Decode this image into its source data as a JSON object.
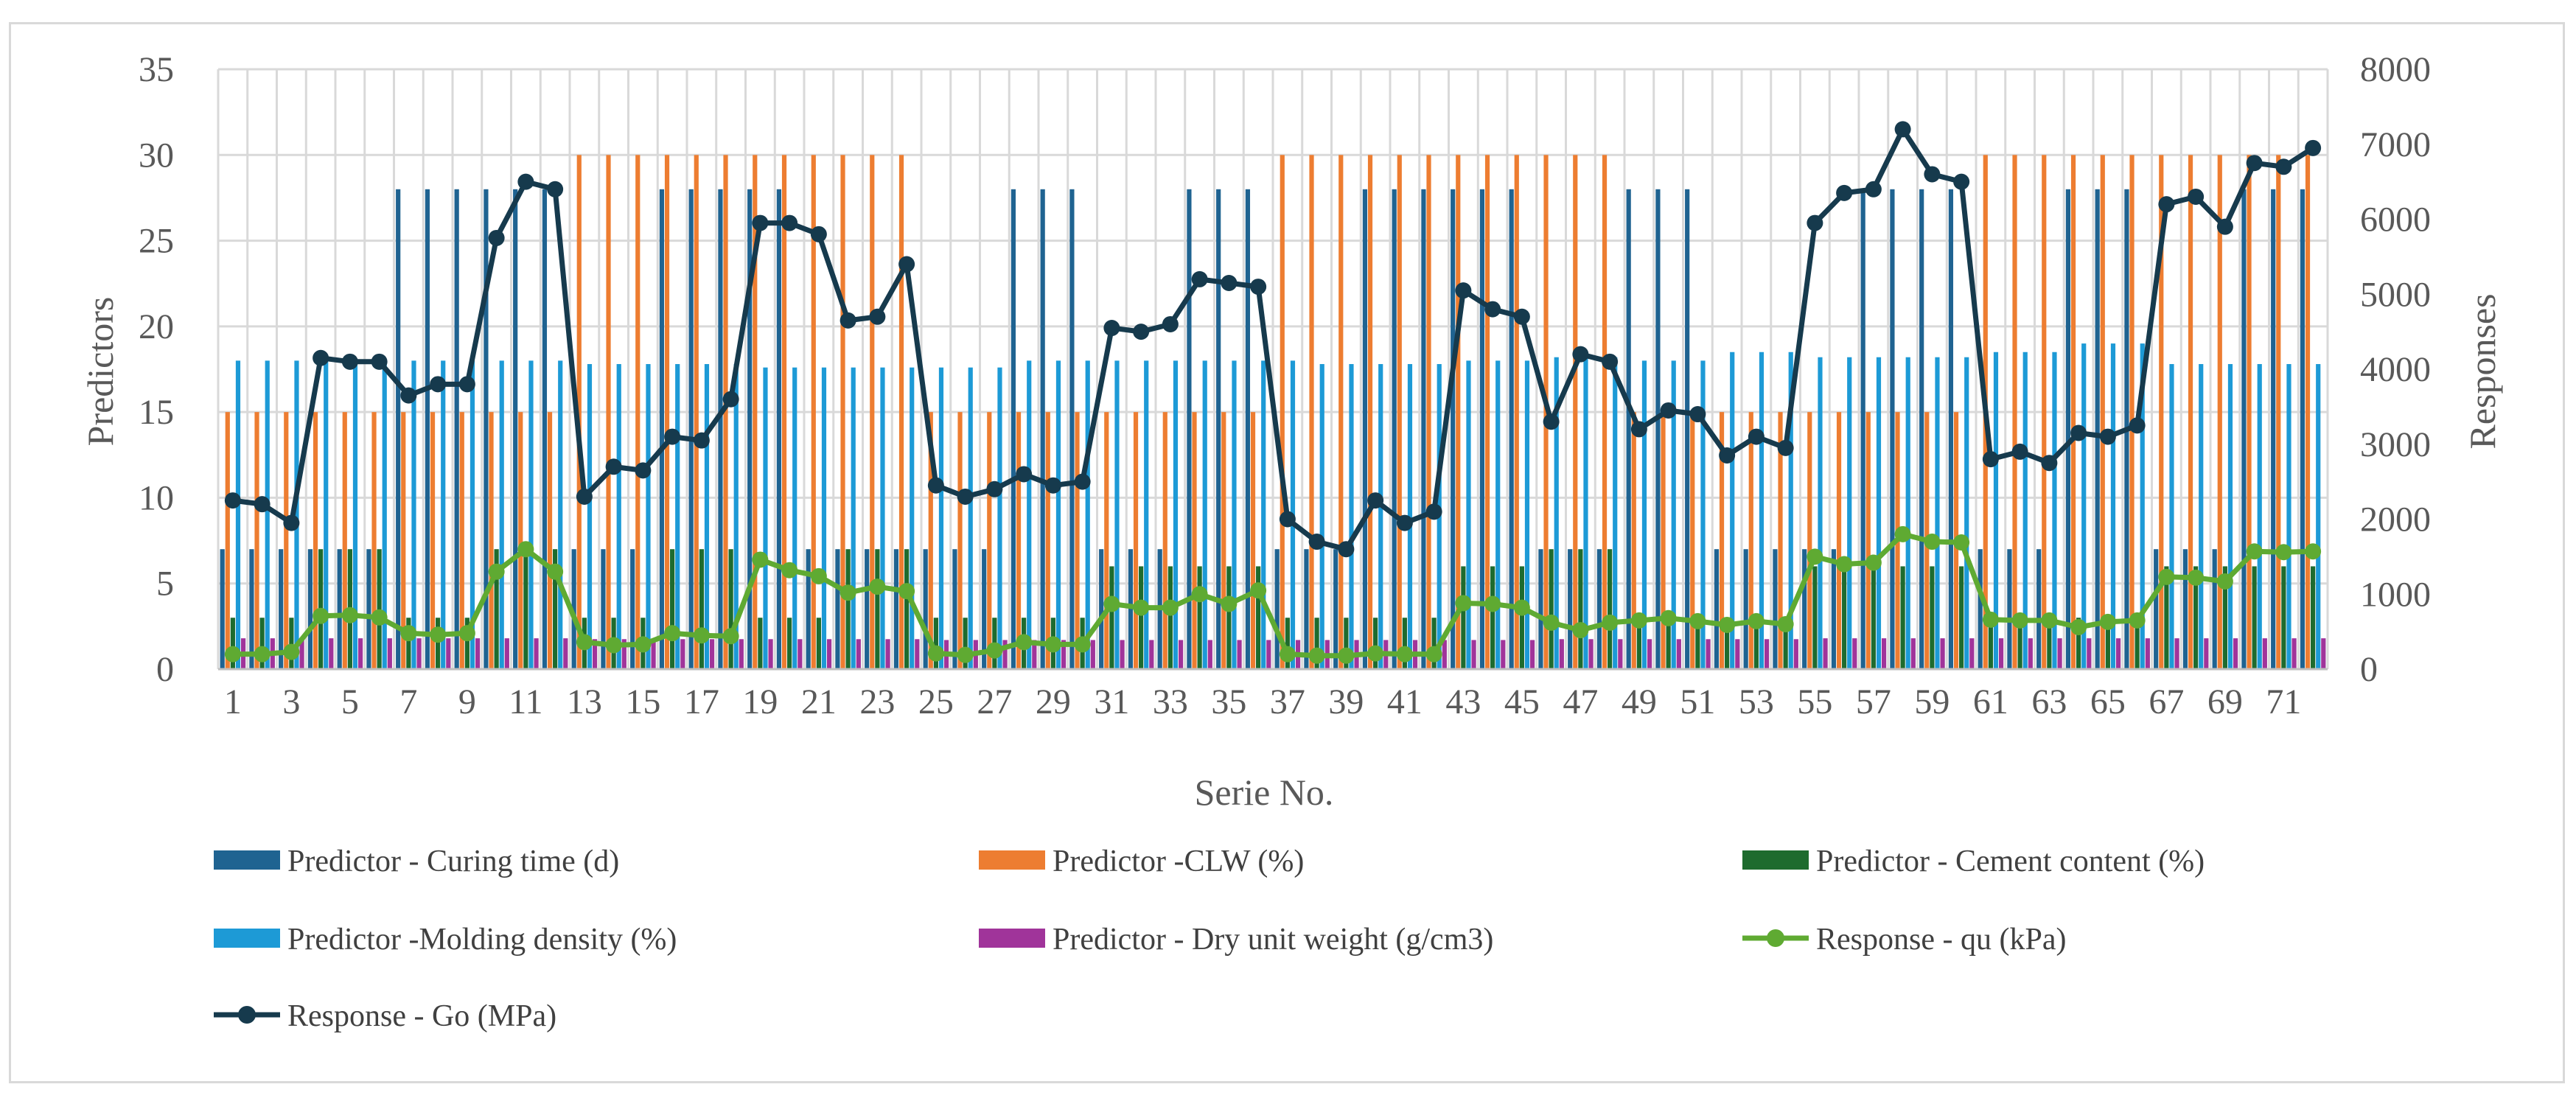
{
  "chart_data": {
    "type": "bar+line (dual axis)",
    "title": "",
    "xlabel": "Serie No.",
    "ylabel_left": "Predictors",
    "ylabel_right": "Responses",
    "ylim_left": [
      0,
      35
    ],
    "ylim_right": [
      0,
      8000
    ],
    "yticks_left": [
      "0",
      "5",
      "10",
      "15",
      "20",
      "25",
      "30",
      "35"
    ],
    "yticks_right": [
      "0",
      "1000",
      "2000",
      "3000",
      "4000",
      "5000",
      "6000",
      "7000",
      "8000"
    ],
    "xtick_labels": [
      "1",
      "3",
      "5",
      "7",
      "9",
      "11",
      "13",
      "15",
      "17",
      "19",
      "21",
      "23",
      "25",
      "27",
      "29",
      "31",
      "33",
      "35",
      "37",
      "39",
      "41",
      "43",
      "45",
      "47",
      "49",
      "51",
      "53",
      "55",
      "57",
      "59",
      "61",
      "63",
      "65",
      "67",
      "69",
      "71"
    ],
    "x": [
      1,
      2,
      3,
      4,
      5,
      6,
      7,
      8,
      9,
      10,
      11,
      12,
      13,
      14,
      15,
      16,
      17,
      18,
      19,
      20,
      21,
      22,
      23,
      24,
      25,
      26,
      27,
      28,
      29,
      30,
      31,
      32,
      33,
      34,
      35,
      36,
      37,
      38,
      39,
      40,
      41,
      42,
      43,
      44,
      45,
      46,
      47,
      48,
      49,
      50,
      51,
      52,
      53,
      54,
      55,
      56,
      57,
      58,
      59,
      60,
      61,
      62,
      63,
      64,
      65,
      66,
      67,
      68,
      69,
      70,
      71,
      72
    ],
    "grid": true,
    "legend_position": "bottom",
    "colors": {
      "curing": "#1f6391",
      "clw": "#ed7d31",
      "cement": "#1e6b2e",
      "molding": "#1d9ad6",
      "dry": "#a0349a",
      "qu": "#5faa32",
      "go": "#163a4d",
      "grid": "#d9d9d9",
      "axis": "#bfbfbf"
    },
    "series": [
      {
        "name": "Predictor - Curing time (d)",
        "type": "bar",
        "axis": "left",
        "values": [
          7,
          7,
          7,
          7,
          7,
          7,
          28,
          28,
          28,
          28,
          28,
          28,
          7,
          7,
          7,
          28,
          28,
          28,
          28,
          28,
          7,
          7,
          7,
          7,
          7,
          7,
          7,
          28,
          28,
          28,
          7,
          7,
          7,
          28,
          28,
          28,
          7,
          7,
          7,
          28,
          28,
          28,
          28,
          28,
          28,
          7,
          7,
          7,
          28,
          28,
          28,
          7,
          7,
          7,
          7,
          7,
          28,
          28,
          28,
          28,
          7,
          7,
          7,
          28,
          28,
          28,
          7,
          7,
          7,
          28,
          28,
          28
        ]
      },
      {
        "name": "Predictor -CLW (%)",
        "type": "bar",
        "axis": "left",
        "values": [
          15,
          15,
          15,
          15,
          15,
          15,
          15,
          15,
          15,
          15,
          15,
          15,
          30,
          30,
          30,
          30,
          30,
          30,
          30,
          30,
          30,
          30,
          30,
          30,
          15,
          15,
          15,
          15,
          15,
          15,
          15,
          15,
          15,
          15,
          15,
          15,
          30,
          30,
          30,
          30,
          30,
          30,
          30,
          30,
          30,
          30,
          30,
          30,
          15,
          15,
          15,
          15,
          15,
          15,
          15,
          15,
          15,
          15,
          15,
          15,
          30,
          30,
          30,
          30,
          30,
          30,
          30,
          30,
          30,
          30,
          30,
          30
        ]
      },
      {
        "name": "Predictor - Cement content (%)",
        "type": "bar",
        "axis": "left",
        "values": [
          3,
          3,
          3,
          7,
          7,
          7,
          3,
          3,
          3,
          7,
          7,
          7,
          3,
          3,
          3,
          7,
          7,
          7,
          3,
          3,
          3,
          7,
          7,
          7,
          3,
          3,
          3,
          3,
          3,
          3,
          6,
          6,
          6,
          6,
          6,
          6,
          3,
          3,
          3,
          3,
          3,
          3,
          6,
          6,
          6,
          7,
          7,
          7,
          3,
          3,
          3,
          3,
          3,
          3,
          6,
          6,
          6,
          6,
          6,
          6,
          3,
          3,
          3,
          3,
          3,
          3,
          6,
          6,
          6,
          6,
          6,
          6
        ]
      },
      {
        "name": "Predictor -Molding density (%)",
        "type": "bar",
        "axis": "left",
        "values": [
          18,
          18,
          18,
          18,
          18,
          18,
          18,
          18,
          18,
          18,
          18,
          18,
          17.8,
          17.8,
          17.8,
          17.8,
          17.8,
          17.8,
          17.6,
          17.6,
          17.6,
          17.6,
          17.6,
          17.6,
          17.6,
          17.6,
          17.6,
          18,
          18,
          18,
          18,
          18,
          18,
          18,
          18,
          18,
          18,
          17.8,
          17.8,
          17.8,
          17.8,
          17.8,
          18,
          18,
          18,
          18.2,
          18.2,
          18.2,
          18,
          18,
          18,
          18.5,
          18.5,
          18.5,
          18.2,
          18.2,
          18.2,
          18.2,
          18.2,
          18.2,
          18.5,
          18.5,
          18.5,
          19,
          19,
          19,
          17.8,
          17.8,
          17.8,
          17.8,
          17.8,
          17.8
        ]
      },
      {
        "name": "Predictor - Dry unit weight (g/cm3)",
        "type": "bar",
        "axis": "left",
        "values": [
          1.8,
          1.8,
          1.8,
          1.8,
          1.8,
          1.8,
          1.8,
          1.8,
          1.8,
          1.8,
          1.8,
          1.8,
          1.75,
          1.75,
          1.75,
          1.75,
          1.75,
          1.75,
          1.75,
          1.75,
          1.75,
          1.75,
          1.75,
          1.75,
          1.7,
          1.7,
          1.7,
          1.7,
          1.7,
          1.7,
          1.7,
          1.7,
          1.7,
          1.7,
          1.7,
          1.7,
          1.7,
          1.7,
          1.7,
          1.7,
          1.7,
          1.7,
          1.7,
          1.7,
          1.7,
          1.75,
          1.75,
          1.75,
          1.75,
          1.75,
          1.75,
          1.75,
          1.75,
          1.75,
          1.8,
          1.8,
          1.8,
          1.8,
          1.8,
          1.8,
          1.8,
          1.8,
          1.8,
          1.8,
          1.8,
          1.8,
          1.8,
          1.8,
          1.8,
          1.8,
          1.8,
          1.8
        ]
      },
      {
        "name": "Response - qu (kPa)",
        "type": "line",
        "axis": "right",
        "values": [
          200,
          200,
          230,
          710,
          720,
          690,
          480,
          460,
          480,
          1300,
          1600,
          1300,
          360,
          320,
          330,
          480,
          450,
          440,
          1460,
          1320,
          1240,
          1020,
          1100,
          1040,
          210,
          190,
          250,
          360,
          330,
          330,
          870,
          820,
          820,
          1000,
          870,
          1050,
          200,
          180,
          180,
          210,
          200,
          200,
          880,
          870,
          820,
          620,
          520,
          620,
          650,
          680,
          640,
          590,
          640,
          600,
          1500,
          1400,
          1420,
          1800,
          1700,
          1690,
          660,
          650,
          650,
          560,
          630,
          650,
          1230,
          1220,
          1170,
          1570,
          1560,
          1570
        ]
      },
      {
        "name": "Response - Go (MPa)",
        "type": "line",
        "axis": "right",
        "values": [
          2250,
          2200,
          1950,
          4150,
          4100,
          4100,
          3650,
          3800,
          3800,
          5750,
          6500,
          6400,
          2300,
          2700,
          2650,
          3100,
          3050,
          3600,
          5950,
          5950,
          5800,
          4650,
          4700,
          5400,
          2450,
          2300,
          2400,
          2600,
          2450,
          2500,
          4550,
          4500,
          4600,
          5200,
          5150,
          5100,
          2000,
          1700,
          1600,
          2250,
          1950,
          2100,
          5050,
          4800,
          4700,
          3300,
          4200,
          4100,
          3200,
          3450,
          3400,
          2850,
          3100,
          2950,
          5950,
          6350,
          6400,
          7200,
          6600,
          6500,
          2800,
          2900,
          2750,
          3150,
          3100,
          3250,
          6200,
          6300,
          5900,
          6750,
          6700,
          6950
        ]
      }
    ]
  }
}
